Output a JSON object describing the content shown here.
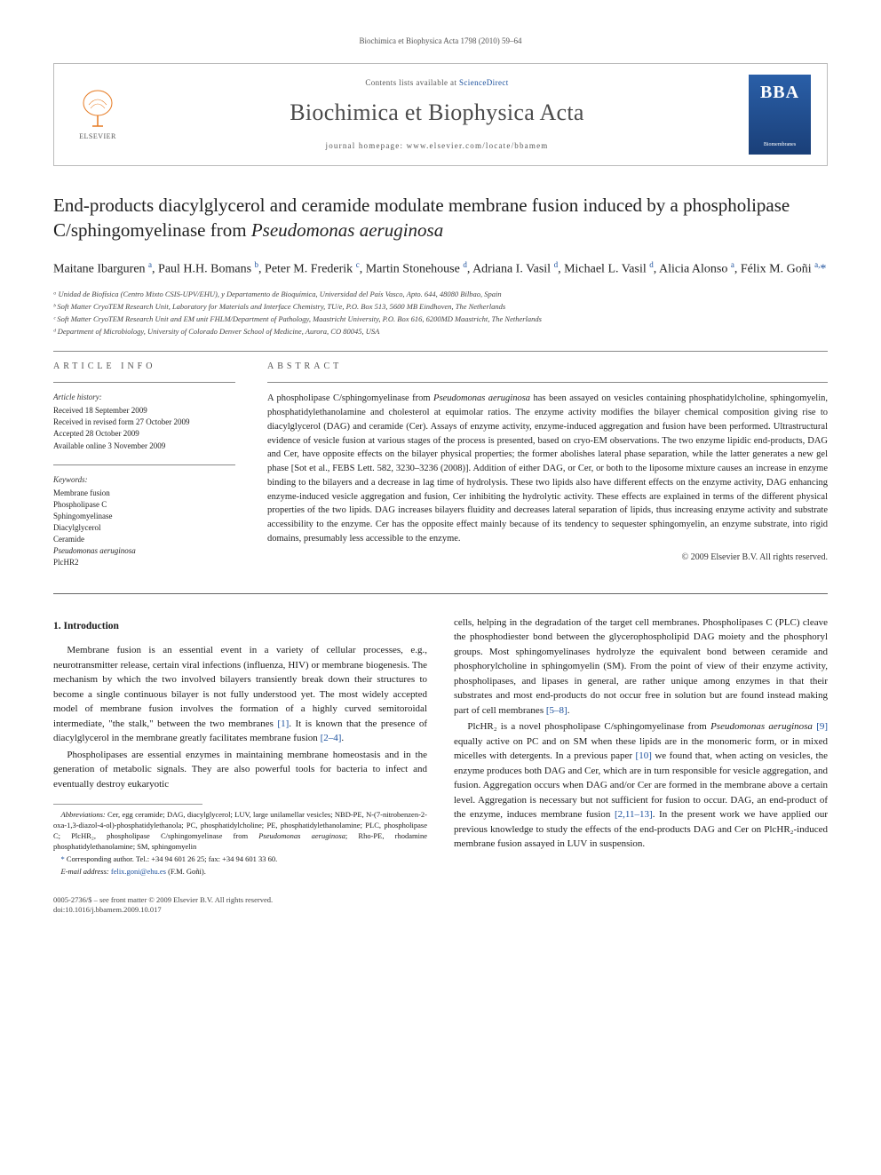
{
  "running_head": "Biochimica et Biophysica Acta 1798 (2010) 59–64",
  "header": {
    "contents_prefix": "Contents lists available at ",
    "contents_link": "ScienceDirect",
    "journal_title": "Biochimica et Biophysica Acta",
    "homepage_prefix": "journal homepage: ",
    "homepage_url": "www.elsevier.com/locate/bbamem",
    "elsevier_label": "ELSEVIER",
    "bba_big": "BBA",
    "bba_sub": "Biomembranes"
  },
  "title_part1": "End-products diacylglycerol and ceramide modulate membrane fusion induced by a phospholipase C/sphingomyelinase from ",
  "title_em": "Pseudomonas aeruginosa",
  "authors_html": "Maitane Ibarguren <sup>a</sup>, Paul H.H. Bomans <sup>b</sup>, Peter M. Frederik <sup>c</sup>, Martin Stonehouse <sup>d</sup>, Adriana I. Vasil <sup>d</sup>, Michael L. Vasil <sup>d</sup>, Alicia Alonso <sup>a</sup>, Félix M. Goñi <sup>a,</sup><span class='star'>*</span>",
  "affiliations": [
    "ᵃ Unidad de Biofísica (Centro Mixto CSIS-UPV/EHU), y Departamento de Bioquímica, Universidad del País Vasco, Apto. 644, 48080 Bilbao, Spain",
    "ᵇ Soft Matter CryoTEM Research Unit, Laboratory for Materials and Interface Chemistry, TU/e, P.O. Box 513, 5600 MB Eindhoven, The Netherlands",
    "ᶜ Soft Matter CryoTEM Research Unit and EM unit FHLM/Department of Pathology, Maastricht University, P.O. Box 616, 6200MD Maastricht, The Netherlands",
    "ᵈ Department of Microbiology, University of Colorado Denver School of Medicine, Aurora, CO 80045, USA"
  ],
  "info": {
    "head": "ARTICLE INFO",
    "history_label": "Article history:",
    "history": [
      "Received 18 September 2009",
      "Received in revised form 27 October 2009",
      "Accepted 28 October 2009",
      "Available online 3 November 2009"
    ],
    "keywords_label": "Keywords:",
    "keywords": [
      "Membrane fusion",
      "Phospholipase C",
      "Sphingomyelinase",
      "Diacylglycerol",
      "Ceramide",
      "Pseudomonas aeruginosa",
      "PlcHR2"
    ]
  },
  "abstract": {
    "head": "ABSTRACT",
    "text": "A phospholipase C/sphingomyelinase from <em>Pseudomonas aeruginosa</em> has been assayed on vesicles containing phosphatidylcholine, sphingomyelin, phosphatidylethanolamine and cholesterol at equimolar ratios. The enzyme activity modifies the bilayer chemical composition giving rise to diacylglycerol (DAG) and ceramide (Cer). Assays of enzyme activity, enzyme-induced aggregation and fusion have been performed. Ultrastructural evidence of vesicle fusion at various stages of the process is presented, based on cryo-EM observations. The two enzyme lipidic end-products, DAG and Cer, have opposite effects on the bilayer physical properties; the former abolishes lateral phase separation, while the latter generates a new gel phase [Sot et al., FEBS Lett. 582, 3230–3236 (2008)]. Addition of either DAG, or Cer, or both to the liposome mixture causes an increase in enzyme binding to the bilayers and a decrease in lag time of hydrolysis. These two lipids also have different effects on the enzyme activity, DAG enhancing enzyme-induced vesicle aggregation and fusion, Cer inhibiting the hydrolytic activity. These effects are explained in terms of the different physical properties of the two lipids. DAG increases bilayers fluidity and decreases lateral separation of lipids, thus increasing enzyme activity and substrate accessibility to the enzyme. Cer has the opposite effect mainly because of its tendency to sequester sphingomyelin, an enzyme substrate, into rigid domains, presumably less accessible to the enzyme.",
    "copyright": "© 2009 Elsevier B.V. All rights reserved."
  },
  "body": {
    "h1": "1. Introduction",
    "p1": "Membrane fusion is an essential event in a variety of cellular processes, e.g., neurotransmitter release, certain viral infections (influenza, HIV) or membrane biogenesis. The mechanism by which the two involved bilayers transiently break down their structures to become a single continuous bilayer is not fully understood yet. The most widely accepted model of membrane fusion involves the formation of a highly curved semitoroidal intermediate, \"the stalk,\" between the two membranes <span class='ref'>[1]</span>. It is known that the presence of diacylglycerol in the membrane greatly facilitates membrane fusion <span class='ref'>[2–4]</span>.",
    "p2": "Phospholipases are essential enzymes in maintaining membrane homeostasis and in the generation of metabolic signals. They are also powerful tools for bacteria to infect and eventually destroy eukaryotic",
    "p3": "cells, helping in the degradation of the target cell membranes. Phospholipases C (PLC) cleave the phosphodiester bond between the glycerophospholipid DAG moiety and the phosphoryl groups. Most sphingomyelinases hydrolyze the equivalent bond between ceramide and phosphorylcholine in sphingomyelin (SM). From the point of view of their enzyme activity, phospholipases, and lipases in general, are rather unique among enzymes in that their substrates and most end-products do not occur free in solution but are found instead making part of cell membranes <span class='ref'>[5–8]</span>.",
    "p4": "PlcHR₂ is a novel phospholipase C/sphingomyelinase from <em>Pseudomonas aeruginosa</em> <span class='ref'>[9]</span> equally active on PC and on SM when these lipids are in the monomeric form, or in mixed micelles with detergents. In a previous paper <span class='ref'>[10]</span> we found that, when acting on vesicles, the enzyme produces both DAG and Cer, which are in turn responsible for vesicle aggregation, and fusion. Aggregation occurs when DAG and/or Cer are formed in the membrane above a certain level. Aggregation is necessary but not sufficient for fusion to occur. DAG, an end-product of the enzyme, induces membrane fusion <span class='ref'>[2,11–13]</span>. In the present work we have applied our previous knowledge to study the effects of the end-products DAG and Cer on PlcHR₂-induced membrane fusion assayed in LUV in suspension."
  },
  "footnotes": {
    "abbrev": "<em>Abbreviations:</em> Cer, egg ceramide; DAG, diacylglycerol; LUV, large unilamellar vesicles; NBD-PE, N-(7-nitrobenzen-2-oxa-1,3-diazol-4-ol)-phosphatidylethanola; PC, phosphatidylcholine; PE, phosphatidylethanolamine; PLC, phospholipase C; PlcHR₂, phospholipase C/sphingomyelinase from <em>Pseudomonas aeruginosa</em>; Rho-PE, rhodamine phosphatidylethanolamine; SM, sphingomyelin",
    "corr": "<span class='star'>*</span> Corresponding author. Tel.: +34 94 601 26 25; fax: +34 94 601 33 60.",
    "email": "<em>E-mail address:</em> <span class='ref'>felix.goni@ehu.es</span> (F.M. Goñi)."
  },
  "footer": {
    "left1": "0005-2736/$ – see front matter © 2009 Elsevier B.V. All rights reserved.",
    "left2": "doi:10.1016/j.bbamem.2009.10.017"
  },
  "colors": {
    "link": "#1a4f9c",
    "text": "#1a1a1a",
    "muted": "#555",
    "rule": "#888",
    "elsevier": "#e67a22",
    "bba_top": "#2a5fa8",
    "bba_bot": "#1a3f78"
  }
}
